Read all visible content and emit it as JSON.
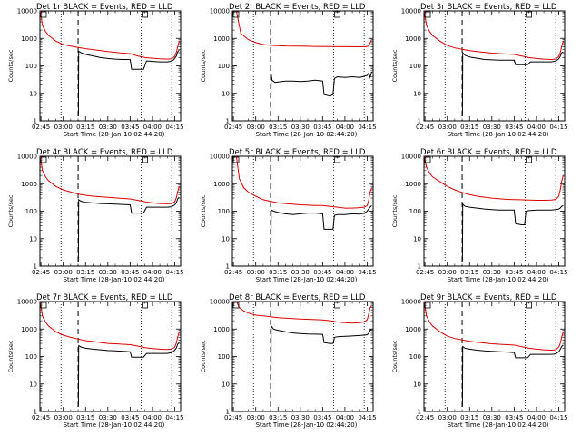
{
  "start_time_label": "Start Time (28-Jan-10 02:44:20)",
  "x_tick_labels": [
    "02:45",
    "03:00",
    "03:15",
    "03:30",
    "03:45",
    "04:00",
    "04:15"
  ],
  "x_tick_minutes": [
    45,
    60,
    75,
    90,
    105,
    120,
    135
  ],
  "y_tick_labels": [
    "1",
    "10",
    "100",
    "1000",
    "10000"
  ],
  "ylabel": "Counts/sec",
  "colors": {
    "events": "#000000",
    "lld": "#e00000",
    "axes": "#000000"
  },
  "chart_data": [
    {
      "type": "line",
      "title": "Det 1r BLACK = Events, RED = LLD",
      "x_unit": "minutes after 02:00",
      "xlim": [
        44.3,
        139
      ],
      "ylim": [
        1,
        10000
      ],
      "yscale": "log",
      "dotted_lines_x": [
        58.5,
        112.5,
        133
      ],
      "dashed_line_x": 70,
      "series": [
        {
          "name": "Events",
          "x": [
            70.2,
            70.4,
            72,
            75,
            80,
            85,
            90,
            95,
            100,
            105,
            106,
            110,
            112,
            114,
            116,
            118,
            120,
            125,
            130,
            132,
            134,
            136,
            137,
            138
          ],
          "y": [
            1.5,
            340,
            300,
            260,
            230,
            200,
            185,
            175,
            170,
            170,
            75,
            75,
            75,
            75,
            150,
            150,
            145,
            140,
            140,
            145,
            160,
            220,
            320,
            380
          ]
        },
        {
          "name": "LLD",
          "x": [
            44.5,
            46,
            48,
            50,
            55,
            60,
            65,
            70,
            75,
            80,
            90,
            100,
            105,
            110,
            115,
            120,
            125,
            130,
            133,
            135,
            136,
            137,
            138
          ],
          "y": [
            10000,
            3000,
            1800,
            1300,
            800,
            600,
            520,
            470,
            420,
            390,
            330,
            290,
            280,
            230,
            200,
            190,
            180,
            175,
            180,
            220,
            300,
            500,
            800
          ]
        }
      ]
    },
    {
      "type": "line",
      "title": "Det 2r BLACK = Events, RED = LLD",
      "x_unit": "minutes after 02:00",
      "xlim": [
        44.3,
        139
      ],
      "ylim": [
        1,
        10000
      ],
      "yscale": "log",
      "dotted_lines_x": [
        58.5,
        112.5,
        133
      ],
      "dashed_line_x": 70,
      "series": [
        {
          "name": "Events",
          "x": [
            70.2,
            70.4,
            71,
            73,
            75,
            80,
            85,
            90,
            95,
            100,
            105,
            106,
            110,
            112,
            113,
            115,
            120,
            125,
            130,
            133,
            135,
            136,
            137,
            138
          ],
          "y": [
            3,
            50,
            30,
            25,
            26,
            28,
            28,
            27,
            28,
            30,
            28,
            9,
            8,
            9,
            35,
            40,
            38,
            40,
            38,
            42,
            45,
            55,
            38,
            60
          ]
        },
        {
          "name": "LLD",
          "x": [
            47,
            50,
            55,
            60,
            65,
            70,
            75,
            80,
            90,
            100,
            110,
            120,
            130,
            134,
            136,
            137,
            138
          ],
          "y": [
            10000,
            1500,
            900,
            700,
            600,
            560,
            540,
            530,
            520,
            510,
            505,
            500,
            495,
            500,
            520,
            700,
            900
          ]
        }
      ]
    },
    {
      "type": "line",
      "title": "Det 3r BLACK = Events, RED = LLD",
      "x_unit": "minutes after 02:00",
      "xlim": [
        44.3,
        139
      ],
      "ylim": [
        1,
        10000
      ],
      "yscale": "log",
      "dotted_lines_x": [
        58.5,
        112.5,
        133
      ],
      "dashed_line_x": 70,
      "series": [
        {
          "name": "Events",
          "x": [
            70.2,
            70.4,
            72,
            75,
            80,
            85,
            90,
            95,
            100,
            105,
            106,
            110,
            112,
            114,
            116,
            120,
            125,
            130,
            133,
            135,
            136,
            137,
            138
          ],
          "y": [
            1.5,
            300,
            240,
            210,
            190,
            170,
            165,
            160,
            160,
            160,
            110,
            110,
            110,
            110,
            140,
            140,
            140,
            140,
            150,
            180,
            220,
            300,
            320
          ]
        },
        {
          "name": "LLD",
          "x": [
            44.5,
            46,
            48,
            50,
            55,
            60,
            65,
            70,
            75,
            80,
            90,
            100,
            105,
            110,
            115,
            120,
            125,
            130,
            133,
            135,
            136,
            137,
            138
          ],
          "y": [
            10000,
            3000,
            1800,
            1300,
            800,
            550,
            450,
            400,
            360,
            330,
            290,
            270,
            260,
            230,
            200,
            185,
            175,
            170,
            175,
            220,
            300,
            500,
            800
          ]
        }
      ]
    },
    {
      "type": "line",
      "title": "Det 4r BLACK = Events, RED = LLD",
      "x_unit": "minutes after 02:00",
      "xlim": [
        44.3,
        139
      ],
      "ylim": [
        1,
        10000
      ],
      "yscale": "log",
      "dotted_lines_x": [
        58.5,
        112.5,
        133
      ],
      "dashed_line_x": 70,
      "series": [
        {
          "name": "Events",
          "x": [
            70.2,
            70.4,
            72,
            75,
            80,
            85,
            90,
            95,
            100,
            105,
            106,
            110,
            112,
            114,
            116,
            120,
            125,
            130,
            133,
            135,
            136,
            137,
            138
          ],
          "y": [
            1.5,
            260,
            230,
            210,
            200,
            190,
            185,
            180,
            175,
            170,
            85,
            85,
            85,
            85,
            140,
            140,
            140,
            140,
            145,
            170,
            200,
            280,
            320
          ]
        },
        {
          "name": "LLD",
          "x": [
            44.5,
            46,
            48,
            50,
            55,
            60,
            65,
            70,
            75,
            80,
            90,
            100,
            105,
            110,
            115,
            120,
            125,
            130,
            133,
            135,
            136,
            137,
            138
          ],
          "y": [
            10000,
            3000,
            1800,
            1300,
            800,
            600,
            500,
            420,
            380,
            350,
            320,
            290,
            280,
            250,
            220,
            200,
            190,
            185,
            190,
            220,
            300,
            500,
            800
          ]
        }
      ]
    },
    {
      "type": "line",
      "title": "Det 5r BLACK = Events, RED = LLD",
      "x_unit": "minutes after 02:00",
      "xlim": [
        44.3,
        139
      ],
      "ylim": [
        1,
        10000
      ],
      "yscale": "log",
      "dotted_lines_x": [
        58.5,
        112.5,
        133
      ],
      "dashed_line_x": 70,
      "series": [
        {
          "name": "Events",
          "x": [
            70.2,
            70.4,
            72,
            75,
            80,
            85,
            90,
            95,
            100,
            105,
            106,
            110,
            112,
            113,
            115,
            120,
            125,
            130,
            133,
            135,
            136,
            137,
            138
          ],
          "y": [
            1.5,
            110,
            100,
            90,
            80,
            75,
            80,
            85,
            85,
            80,
            22,
            22,
            22,
            70,
            75,
            75,
            80,
            78,
            85,
            100,
            120,
            140,
            160
          ]
        },
        {
          "name": "LLD",
          "x": [
            47,
            49,
            52,
            55,
            60,
            65,
            70,
            75,
            80,
            90,
            100,
            105,
            110,
            115,
            120,
            125,
            130,
            133,
            135,
            136,
            137,
            138
          ],
          "y": [
            10000,
            1500,
            700,
            500,
            350,
            260,
            230,
            200,
            190,
            170,
            160,
            160,
            150,
            140,
            130,
            130,
            135,
            140,
            160,
            250,
            500,
            700
          ]
        }
      ]
    },
    {
      "type": "line",
      "title": "Det 6r BLACK = Events, RED = LLD",
      "x_unit": "minutes after 02:00",
      "xlim": [
        44.3,
        139
      ],
      "ylim": [
        1,
        10000
      ],
      "yscale": "log",
      "dotted_lines_x": [
        58.5,
        112.5,
        133
      ],
      "dashed_line_x": 70,
      "series": [
        {
          "name": "Events",
          "x": [
            70.2,
            70.4,
            72,
            75,
            80,
            85,
            90,
            95,
            100,
            105,
            106,
            110,
            112,
            113,
            115,
            120,
            125,
            130,
            133,
            135,
            136,
            137,
            138
          ],
          "y": [
            1.5,
            180,
            150,
            140,
            130,
            120,
            115,
            110,
            110,
            110,
            35,
            32,
            32,
            100,
            105,
            110,
            110,
            110,
            115,
            120,
            130,
            150,
            160
          ]
        },
        {
          "name": "LLD",
          "x": [
            44.5,
            46,
            48,
            50,
            55,
            60,
            65,
            70,
            75,
            80,
            90,
            100,
            105,
            110,
            115,
            120,
            125,
            130,
            133,
            135,
            136,
            137,
            138
          ],
          "y": [
            10000,
            4000,
            2500,
            1800,
            1200,
            800,
            600,
            480,
            400,
            350,
            300,
            270,
            265,
            260,
            255,
            250,
            250,
            255,
            270,
            350,
            600,
            1200,
            2000
          ]
        }
      ]
    },
    {
      "type": "line",
      "title": "Det 7r BLACK = Events, RED = LLD",
      "x_unit": "minutes after 02:00",
      "xlim": [
        44.3,
        139
      ],
      "ylim": [
        1,
        10000
      ],
      "yscale": "log",
      "dotted_lines_x": [
        58.5,
        112.5,
        133
      ],
      "dashed_line_x": 70,
      "series": [
        {
          "name": "Events",
          "x": [
            70.2,
            70.4,
            72,
            75,
            80,
            85,
            90,
            95,
            100,
            105,
            106,
            110,
            112,
            114,
            116,
            120,
            125,
            130,
            133,
            135,
            136,
            137,
            138
          ],
          "y": [
            1.5,
            250,
            220,
            200,
            185,
            175,
            165,
            160,
            155,
            150,
            95,
            95,
            95,
            95,
            130,
            130,
            130,
            130,
            140,
            170,
            200,
            280,
            320
          ]
        },
        {
          "name": "LLD",
          "x": [
            44.5,
            46,
            48,
            50,
            55,
            60,
            65,
            70,
            75,
            80,
            90,
            100,
            105,
            110,
            115,
            120,
            125,
            130,
            133,
            135,
            136,
            137,
            138
          ],
          "y": [
            10000,
            3000,
            1800,
            1300,
            800,
            600,
            500,
            430,
            380,
            350,
            300,
            280,
            270,
            240,
            210,
            195,
            185,
            180,
            185,
            220,
            300,
            500,
            800
          ]
        }
      ]
    },
    {
      "type": "line",
      "title": "Det 8r BLACK = Events, RED = LLD",
      "x_unit": "minutes after 02:00",
      "xlim": [
        44.3,
        139
      ],
      "ylim": [
        1,
        10000
      ],
      "yscale": "log",
      "dotted_lines_x": [
        58.5,
        112.5,
        133
      ],
      "dashed_line_x": 70,
      "series": [
        {
          "name": "Events",
          "x": [
            70.2,
            70.4,
            72,
            75,
            80,
            85,
            90,
            95,
            100,
            105,
            106,
            110,
            112,
            113,
            115,
            120,
            125,
            130,
            133,
            135,
            136,
            137,
            138
          ],
          "y": [
            1.5,
            1300,
            1000,
            900,
            800,
            720,
            680,
            660,
            650,
            640,
            320,
            300,
            300,
            500,
            520,
            540,
            560,
            580,
            600,
            620,
            700,
            900,
            1000
          ]
        },
        {
          "name": "LLD",
          "x": [
            47,
            49,
            52,
            55,
            60,
            65,
            70,
            75,
            80,
            90,
            100,
            105,
            110,
            115,
            120,
            125,
            130,
            133,
            135,
            136,
            137,
            138
          ],
          "y": [
            10000,
            6000,
            4500,
            3800,
            3200,
            3000,
            2800,
            2600,
            2500,
            2300,
            2200,
            2150,
            2000,
            1800,
            1700,
            1650,
            1700,
            1800,
            2200,
            3500,
            6000,
            7000
          ]
        }
      ]
    },
    {
      "type": "line",
      "title": "Det 9r BLACK = Events, RED = LLD",
      "x_unit": "minutes after 02:00",
      "xlim": [
        44.3,
        139
      ],
      "ylim": [
        1,
        10000
      ],
      "yscale": "log",
      "dotted_lines_x": [
        58.5,
        112.5,
        133
      ],
      "dashed_line_x": 70,
      "series": [
        {
          "name": "Events",
          "x": [
            70.2,
            70.4,
            72,
            75,
            80,
            85,
            90,
            95,
            100,
            105,
            106,
            110,
            112,
            114,
            116,
            120,
            125,
            130,
            133,
            135,
            136,
            137,
            138
          ],
          "y": [
            1.5,
            230,
            200,
            185,
            170,
            160,
            155,
            150,
            145,
            140,
            90,
            90,
            90,
            90,
            120,
            120,
            120,
            120,
            125,
            150,
            180,
            230,
            260
          ]
        },
        {
          "name": "LLD",
          "x": [
            44.5,
            46,
            48,
            50,
            55,
            60,
            65,
            70,
            75,
            80,
            90,
            100,
            105,
            110,
            115,
            120,
            125,
            130,
            133,
            135,
            136,
            137,
            138
          ],
          "y": [
            10000,
            3000,
            1800,
            1300,
            800,
            550,
            450,
            400,
            360,
            330,
            290,
            270,
            260,
            230,
            200,
            185,
            175,
            170,
            175,
            220,
            300,
            500,
            800
          ]
        }
      ]
    }
  ]
}
